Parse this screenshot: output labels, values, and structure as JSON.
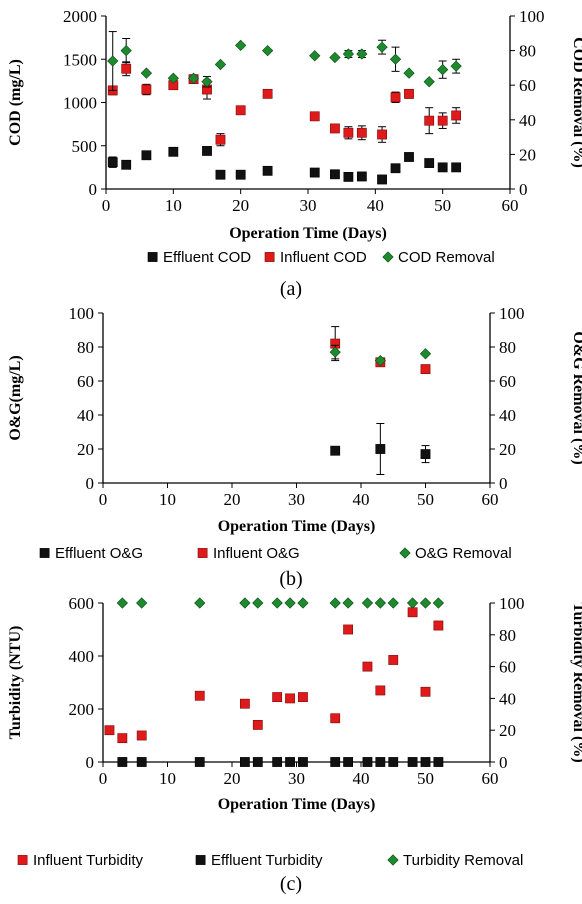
{
  "chart_data": [
    {
      "type": "scatter",
      "caption": "(a)",
      "xlabel": "Operation Time (Days)",
      "ylabel": "COD (mg/L)",
      "y2label": "COD Removal (%)",
      "xlim": [
        0,
        60
      ],
      "xticks": [
        0,
        10,
        20,
        30,
        40,
        50,
        60
      ],
      "ylim": [
        0,
        2000
      ],
      "yticks": [
        0,
        500,
        1000,
        1500,
        2000
      ],
      "y2lim": [
        0,
        100
      ],
      "y2ticks": [
        0,
        20,
        40,
        60,
        80,
        100
      ],
      "series": [
        {
          "name": "Effluent COD",
          "axis": "left",
          "color": "#111111",
          "marker": "square",
          "x": [
            1,
            3,
            6,
            10,
            15,
            17,
            20,
            24,
            31,
            34,
            36,
            38,
            41,
            43,
            45,
            48,
            50,
            52
          ],
          "y": [
            310,
            280,
            390,
            430,
            440,
            165,
            165,
            210,
            190,
            170,
            140,
            145,
            110,
            240,
            370,
            300,
            250,
            250
          ],
          "err": [
            60,
            0,
            0,
            0,
            0,
            0,
            40,
            0,
            0,
            0,
            0,
            0,
            0,
            0,
            0,
            0,
            40,
            0
          ]
        },
        {
          "name": "Influent COD",
          "axis": "left",
          "color": "#e0191b",
          "marker": "square",
          "x": [
            1,
            3,
            6,
            10,
            13,
            15,
            17,
            20,
            24,
            31,
            34,
            36,
            38,
            41,
            43,
            45,
            48,
            50,
            52
          ],
          "y": [
            1140,
            1390,
            1150,
            1200,
            1270,
            1150,
            570,
            910,
            1100,
            840,
            700,
            650,
            650,
            630,
            1060,
            1100,
            790,
            790,
            850
          ],
          "err": [
            50,
            80,
            60,
            0,
            0,
            110,
            70,
            0,
            0,
            0,
            0,
            70,
            80,
            90,
            60,
            50,
            150,
            90,
            90
          ]
        },
        {
          "name": "COD Removal",
          "axis": "right",
          "color": "#1e8a2e",
          "marker": "diamond",
          "x": [
            1,
            3,
            6,
            10,
            13,
            15,
            17,
            20,
            24,
            31,
            34,
            36,
            38,
            41,
            43,
            45,
            48,
            50,
            52
          ],
          "y": [
            74,
            80,
            67,
            64,
            64,
            62,
            72,
            83,
            80,
            77,
            76,
            78,
            78,
            82,
            75,
            67,
            62,
            69,
            71
          ],
          "err": [
            17,
            7,
            0,
            0,
            0,
            3,
            0,
            0,
            0,
            0,
            0,
            2,
            2,
            4,
            7,
            0,
            0,
            5,
            4
          ]
        }
      ]
    },
    {
      "type": "scatter",
      "caption": "(b)",
      "xlabel": "Operation Time (Days)",
      "ylabel": "O&G(mg/L)",
      "y2label": "O&G Removal (%)",
      "xlim": [
        0,
        60
      ],
      "xticks": [
        0,
        10,
        20,
        30,
        40,
        50,
        60
      ],
      "ylim": [
        0,
        100
      ],
      "yticks": [
        0,
        20,
        40,
        60,
        80,
        100
      ],
      "y2lim": [
        0,
        100
      ],
      "y2ticks": [
        0,
        20,
        40,
        60,
        80,
        100
      ],
      "series": [
        {
          "name": "Effluent O&G",
          "axis": "left",
          "color": "#111111",
          "marker": "square",
          "x": [
            36,
            43,
            50
          ],
          "y": [
            19,
            20,
            17
          ],
          "err": [
            0,
            15,
            5
          ]
        },
        {
          "name": "Influent O&G",
          "axis": "left",
          "color": "#e0191b",
          "marker": "square",
          "x": [
            36,
            43,
            50
          ],
          "y": [
            82,
            71,
            67
          ],
          "err": [
            10,
            0,
            0
          ]
        },
        {
          "name": "O&G Removal",
          "axis": "right",
          "color": "#1e8a2e",
          "marker": "diamond",
          "x": [
            36,
            43,
            50
          ],
          "y": [
            77,
            72,
            76
          ],
          "err": [
            4,
            0,
            0
          ]
        }
      ]
    },
    {
      "type": "scatter",
      "caption": "(c)",
      "xlabel": "Operation Time (Days)",
      "ylabel": "Turbidity (NTU)",
      "y2label": "Turbidity Removal (%)",
      "xlim": [
        0,
        60
      ],
      "xticks": [
        0,
        10,
        20,
        30,
        40,
        50,
        60
      ],
      "ylim": [
        0,
        600
      ],
      "yticks": [
        0,
        200,
        400,
        600
      ],
      "y2lim": [
        0,
        100
      ],
      "y2ticks": [
        0,
        20,
        40,
        60,
        80,
        100
      ],
      "series": [
        {
          "name": "Influent Turbidity",
          "axis": "left",
          "color": "#e0191b",
          "marker": "square",
          "x": [
            1,
            3,
            6,
            15,
            22,
            24,
            27,
            29,
            31,
            36,
            38,
            41,
            43,
            45,
            48,
            50,
            52
          ],
          "y": [
            120,
            90,
            100,
            250,
            220,
            140,
            245,
            240,
            245,
            165,
            500,
            360,
            270,
            385,
            565,
            265,
            515
          ],
          "err": [
            0,
            0,
            0,
            0,
            0,
            0,
            15,
            0,
            0,
            0,
            0,
            0,
            0,
            0,
            0,
            0,
            0
          ]
        },
        {
          "name": "Effluent Turbidity",
          "axis": "left",
          "color": "#111111",
          "marker": "square",
          "x": [
            3,
            6,
            15,
            22,
            24,
            27,
            29,
            31,
            36,
            38,
            41,
            43,
            45,
            48,
            50,
            52
          ],
          "y": [
            0,
            0,
            0,
            0,
            0,
            0,
            0,
            0,
            0,
            0,
            0,
            0,
            0,
            0,
            0,
            0
          ],
          "err": [
            0,
            0,
            0,
            0,
            0,
            0,
            0,
            0,
            0,
            0,
            0,
            0,
            0,
            0,
            0,
            0
          ]
        },
        {
          "name": "Turbidity Removal",
          "axis": "right",
          "color": "#1e8a2e",
          "marker": "diamond",
          "x": [
            3,
            6,
            15,
            22,
            24,
            27,
            29,
            31,
            36,
            38,
            41,
            43,
            45,
            48,
            50,
            52
          ],
          "y": [
            100,
            100,
            100,
            100,
            100,
            100,
            100,
            100,
            100,
            100,
            100,
            100,
            100,
            100,
            100,
            100
          ],
          "err": [
            0,
            0,
            0,
            0,
            0,
            0,
            0,
            0,
            0,
            0,
            0,
            0,
            0,
            0,
            0,
            0
          ]
        }
      ]
    }
  ]
}
